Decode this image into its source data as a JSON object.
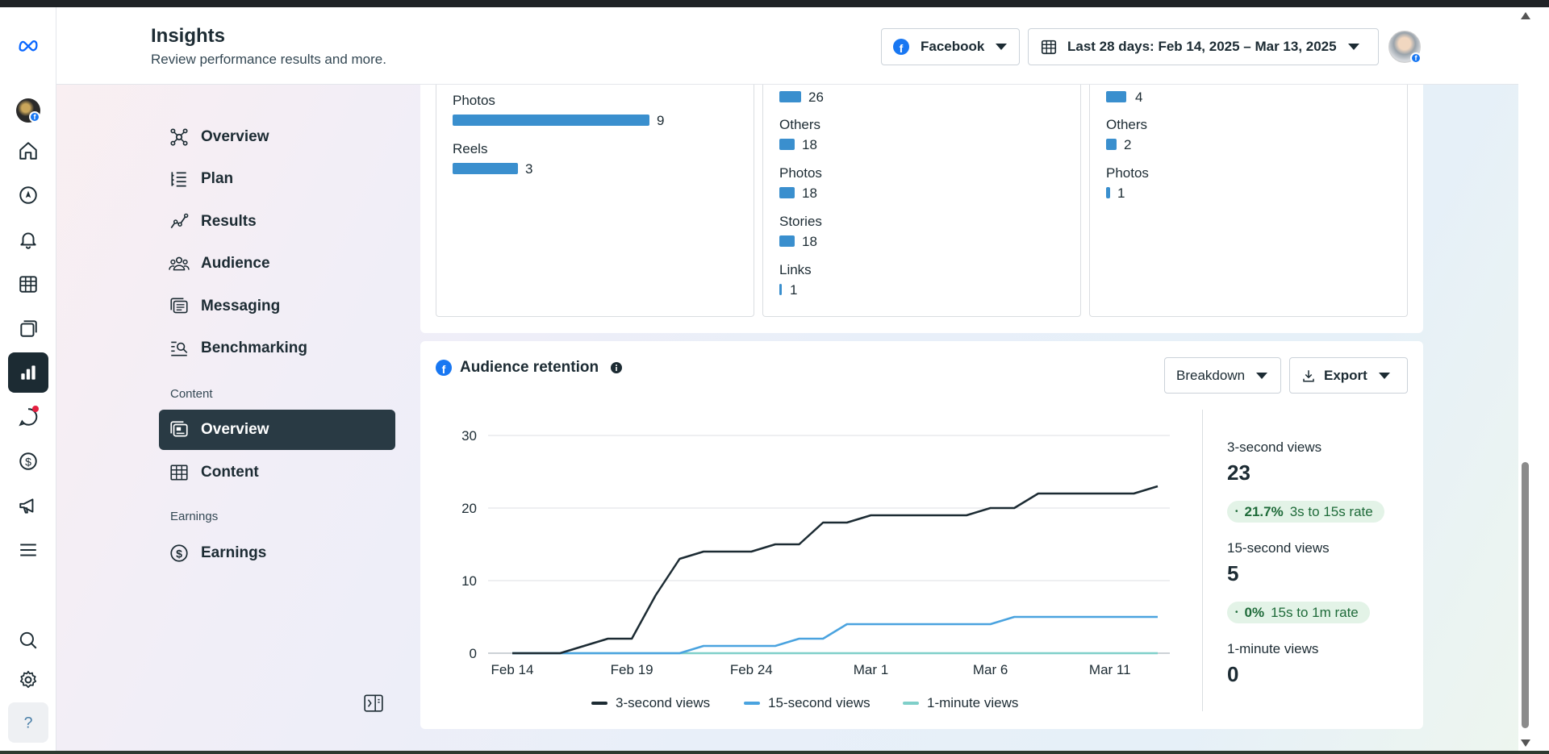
{
  "header": {
    "title": "Insights",
    "subtitle": "Review performance results and more.",
    "platform_label": "Facebook",
    "date_range_label": "Last 28 days: Feb 14, 2025 – Mar 13, 2025"
  },
  "nav": {
    "items": [
      {
        "label": "Overview"
      },
      {
        "label": "Plan"
      },
      {
        "label": "Results"
      },
      {
        "label": "Audience"
      },
      {
        "label": "Messaging"
      },
      {
        "label": "Benchmarking"
      }
    ],
    "content_section": "Content",
    "content_items": [
      {
        "label": "Overview"
      },
      {
        "label": "Content"
      }
    ],
    "earnings_section": "Earnings",
    "earnings_items": [
      {
        "label": "Earnings"
      }
    ]
  },
  "content_cards": {
    "card1": [
      {
        "label": "Photos",
        "value": "9"
      },
      {
        "label": "Reels",
        "value": "3"
      }
    ],
    "card2": [
      {
        "label": "",
        "value": "26"
      },
      {
        "label": "Others",
        "value": "18"
      },
      {
        "label": "Photos",
        "value": "18"
      },
      {
        "label": "Stories",
        "value": "18"
      },
      {
        "label": "Links",
        "value": "1"
      }
    ],
    "card3": [
      {
        "label": "",
        "value": "4"
      },
      {
        "label": "Others",
        "value": "2"
      },
      {
        "label": "Photos",
        "value": "1"
      }
    ]
  },
  "retention": {
    "title": "Audience retention",
    "breakdown_label": "Breakdown",
    "export_label": "Export",
    "stats": {
      "three_sec_label": "3-second views",
      "three_sec_value": "23",
      "rate1_value": "21.7%",
      "rate1_label": "3s to 15s rate",
      "fifteen_sec_label": "15-second views",
      "fifteen_sec_value": "5",
      "rate2_value": "0%",
      "rate2_label": "15s to 1m rate",
      "one_min_label": "1-minute views",
      "one_min_value": "0"
    }
  },
  "chart_data": {
    "type": "line",
    "title": "",
    "xlabel": "",
    "ylabel": "",
    "ylim": [
      0,
      30
    ],
    "yticks": [
      "30",
      "20",
      "10",
      "0"
    ],
    "xticks": [
      "Feb 14",
      "Feb 19",
      "Feb 24",
      "Mar 1",
      "Mar 6",
      "Mar 11"
    ],
    "x": [
      "Feb 14",
      "Feb 15",
      "Feb 16",
      "Feb 17",
      "Feb 18",
      "Feb 19",
      "Feb 20",
      "Feb 21",
      "Feb 22",
      "Feb 23",
      "Feb 24",
      "Feb 25",
      "Feb 26",
      "Feb 27",
      "Feb 28",
      "Mar 1",
      "Mar 2",
      "Mar 3",
      "Mar 4",
      "Mar 5",
      "Mar 6",
      "Mar 7",
      "Mar 8",
      "Mar 9",
      "Mar 10",
      "Mar 11",
      "Mar 12",
      "Mar 13"
    ],
    "series": [
      {
        "name": "3-second views",
        "color": "#1c2b33",
        "values": [
          0,
          0,
          0,
          1,
          2,
          2,
          8,
          13,
          14,
          14,
          14,
          15,
          15,
          18,
          18,
          19,
          19,
          19,
          19,
          19,
          20,
          20,
          22,
          22,
          22,
          22,
          22,
          23
        ]
      },
      {
        "name": "15-second views",
        "color": "#4aa3df",
        "values": [
          0,
          0,
          0,
          0,
          0,
          0,
          0,
          0,
          1,
          1,
          1,
          1,
          2,
          2,
          4,
          4,
          4,
          4,
          4,
          4,
          4,
          5,
          5,
          5,
          5,
          5,
          5,
          5
        ]
      },
      {
        "name": "1-minute views",
        "color": "#7fcfc9",
        "values": [
          0,
          0,
          0,
          0,
          0,
          0,
          0,
          0,
          0,
          0,
          0,
          0,
          0,
          0,
          0,
          0,
          0,
          0,
          0,
          0,
          0,
          0,
          0,
          0,
          0,
          0,
          0,
          0
        ]
      }
    ],
    "grid": true,
    "legend": "bottom-center"
  },
  "colors": {
    "bar": "#3a8fce",
    "facebook": "#1877f2",
    "nav_active": "#293a44"
  }
}
